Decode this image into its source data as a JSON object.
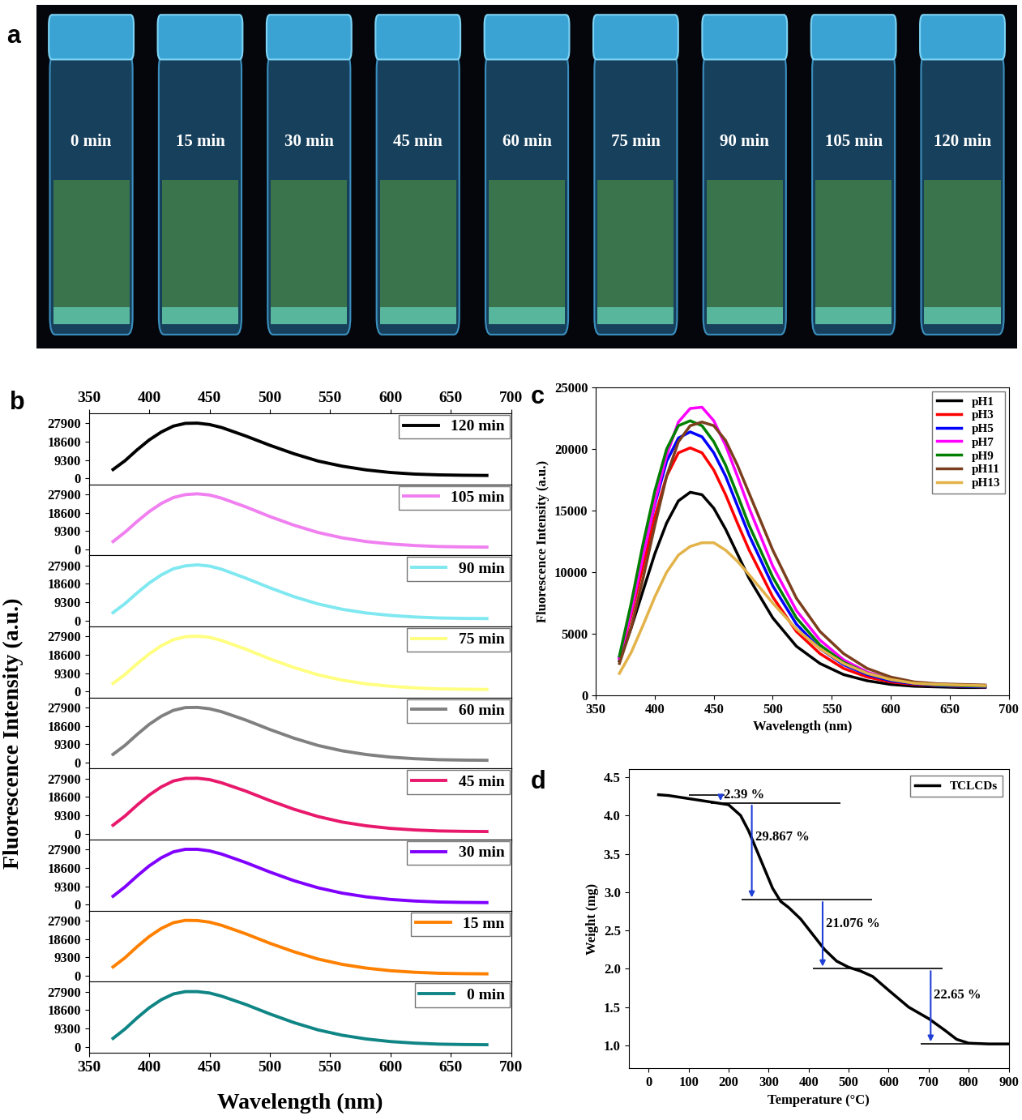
{
  "chart_data": [
    {
      "type": "photo",
      "title": "a",
      "categories": [
        "0 min",
        "15 min",
        "30 min",
        "45 min",
        "60 min",
        "75 min",
        "90 min",
        "105 min",
        "120 min"
      ]
    },
    {
      "type": "line",
      "title": "b",
      "x_label": "Wavelength (nm)",
      "y_label": "Fluorescence Intensity (a.u.)",
      "x": [
        370,
        380,
        390,
        400,
        410,
        420,
        430,
        440,
        450,
        460,
        480,
        500,
        520,
        540,
        560,
        580,
        600,
        620,
        640,
        660,
        680
      ],
      "xlim": [
        350,
        700
      ],
      "xticks": [
        350,
        400,
        450,
        500,
        550,
        600,
        650,
        700
      ],
      "ylim": [
        -3000,
        33000
      ],
      "yticks": [
        0,
        9300,
        18600,
        27900
      ],
      "legend": "upper right",
      "series": [
        {
          "name": "120 min",
          "color": "#000000",
          "values": [
            4500,
            9000,
            14500,
            19500,
            23500,
            26500,
            27900,
            28000,
            27300,
            25800,
            21500,
            16800,
            12500,
            8800,
            6200,
            4300,
            3000,
            2200,
            1800,
            1600,
            1500
          ]
        },
        {
          "name": "105 min",
          "color": "#f07ff0",
          "values": [
            4000,
            8800,
            14200,
            19200,
            23300,
            26300,
            27800,
            28200,
            27600,
            26000,
            21600,
            16700,
            12300,
            8600,
            5900,
            4000,
            2800,
            2000,
            1500,
            1300,
            1200
          ]
        },
        {
          "name": "90 min",
          "color": "#7fe8f0",
          "values": [
            4000,
            8600,
            14000,
            19000,
            23100,
            26200,
            27700,
            28200,
            27600,
            26000,
            21500,
            16600,
            12100,
            8400,
            5700,
            3800,
            2600,
            1800,
            1300,
            1100,
            1000
          ]
        },
        {
          "name": "75 min",
          "color": "#ffff80",
          "values": [
            4100,
            8700,
            14100,
            19100,
            23200,
            26300,
            27800,
            28100,
            27500,
            25900,
            21500,
            16600,
            12200,
            8500,
            5800,
            3900,
            2700,
            1900,
            1400,
            1200,
            1100
          ]
        },
        {
          "name": "60 min",
          "color": "#808080",
          "values": [
            4200,
            8800,
            14300,
            19400,
            23500,
            26500,
            27900,
            28000,
            27300,
            25800,
            21600,
            16800,
            12400,
            8700,
            6000,
            4100,
            2800,
            2000,
            1500,
            1300,
            1200
          ]
        },
        {
          "name": "45 min",
          "color": "#e8196c",
          "values": [
            4300,
            9000,
            14500,
            19600,
            23700,
            26700,
            28000,
            28100,
            27400,
            25800,
            21600,
            16800,
            12400,
            8700,
            5900,
            4000,
            2700,
            1900,
            1400,
            1200,
            1100
          ]
        },
        {
          "name": "30 min",
          "color": "#8000ff",
          "values": [
            4300,
            9100,
            14600,
            19700,
            23800,
            26800,
            28100,
            28100,
            27300,
            25700,
            21400,
            16600,
            12200,
            8600,
            5900,
            4000,
            2700,
            1900,
            1400,
            1200,
            1100
          ]
        },
        {
          "name": "15 mn",
          "color": "#ff8000",
          "values": [
            4500,
            9200,
            14800,
            19900,
            24000,
            26900,
            28100,
            28000,
            27200,
            25600,
            21300,
            16500,
            12200,
            8500,
            5800,
            3900,
            2600,
            1800,
            1300,
            1100,
            1000
          ]
        },
        {
          "name": "0 min",
          "color": "#0f8585",
          "values": [
            4300,
            9100,
            14700,
            19800,
            23900,
            26800,
            28000,
            28000,
            27300,
            25700,
            21500,
            16700,
            12300,
            8600,
            5900,
            4000,
            2700,
            1900,
            1400,
            1200,
            1100
          ]
        }
      ]
    },
    {
      "type": "line",
      "title": "c",
      "x_label": "Wavelength (nm)",
      "y_label": "Fluorescence Intensity (a.u.)",
      "x": [
        370,
        380,
        390,
        400,
        410,
        420,
        430,
        440,
        450,
        460,
        470,
        480,
        500,
        520,
        540,
        560,
        580,
        600,
        620,
        640,
        660,
        680
      ],
      "xlim": [
        350,
        700
      ],
      "xticks": [
        350,
        400,
        450,
        500,
        550,
        600,
        650,
        700
      ],
      "ylim": [
        0,
        25000
      ],
      "yticks": [
        0,
        5000,
        10000,
        15000,
        20000,
        25000
      ],
      "legend": "upper right",
      "series": [
        {
          "name": "pH1",
          "color": "#000000",
          "values": [
            2800,
            5500,
            8500,
            11500,
            14000,
            15800,
            16500,
            16300,
            15200,
            13500,
            11500,
            9500,
            6300,
            4000,
            2600,
            1700,
            1200,
            900,
            750,
            700,
            650,
            650
          ]
        },
        {
          "name": "pH3",
          "color": "#ff0000",
          "values": [
            3000,
            6500,
            10500,
            14500,
            17800,
            19700,
            20100,
            19700,
            18300,
            16300,
            14000,
            11800,
            8000,
            5200,
            3400,
            2200,
            1500,
            1100,
            900,
            800,
            750,
            700
          ]
        },
        {
          "name": "pH5",
          "color": "#0000ff",
          "values": [
            3100,
            7000,
            11500,
            15500,
            19000,
            20900,
            21400,
            21000,
            19700,
            17800,
            15400,
            13000,
            8900,
            5800,
            3800,
            2500,
            1700,
            1200,
            950,
            800,
            750,
            700
          ]
        },
        {
          "name": "pH7",
          "color": "#ff00ff",
          "values": [
            3000,
            6800,
            11300,
            15700,
            19500,
            22200,
            23300,
            23400,
            22300,
            20300,
            17800,
            15200,
            10500,
            6900,
            4500,
            2900,
            1900,
            1300,
            1000,
            850,
            800,
            750
          ]
        },
        {
          "name": "pH9",
          "color": "#008000",
          "values": [
            3200,
            7500,
            12300,
            16600,
            20000,
            21900,
            22300,
            21900,
            20600,
            18700,
            16300,
            13800,
            9600,
            6300,
            4100,
            2700,
            1800,
            1300,
            1000,
            850,
            800,
            750
          ]
        },
        {
          "name": "pH11",
          "color": "#7b3f1e",
          "values": [
            2600,
            5500,
            9500,
            13800,
            17800,
            20600,
            21900,
            22200,
            21900,
            20700,
            18700,
            16400,
            11800,
            7900,
            5200,
            3400,
            2200,
            1500,
            1100,
            950,
            900,
            850
          ]
        },
        {
          "name": "pH13",
          "color": "#e3b34a",
          "values": [
            1800,
            3500,
            5700,
            8000,
            10000,
            11400,
            12100,
            12400,
            12400,
            11800,
            10900,
            9800,
            7500,
            5400,
            3800,
            2600,
            1800,
            1300,
            1000,
            900,
            850,
            800
          ]
        }
      ]
    },
    {
      "type": "line",
      "title": "d",
      "x_label": "Temperature (°C)",
      "y_label": "Weight (mg)",
      "x": [
        25,
        50,
        100,
        150,
        200,
        230,
        250,
        270,
        290,
        310,
        330,
        350,
        380,
        410,
        440,
        470,
        500,
        530,
        560,
        600,
        650,
        700,
        740,
        770,
        800,
        850,
        900
      ],
      "xlim": [
        -50,
        900
      ],
      "xticks": [
        0,
        100,
        200,
        300,
        400,
        500,
        600,
        700,
        800,
        900
      ],
      "ylim": [
        0.7,
        4.6
      ],
      "yticks": [
        1.0,
        1.5,
        2.0,
        2.5,
        3.0,
        3.5,
        4.0,
        4.5
      ],
      "legend": "upper right",
      "series": [
        {
          "name": "TCLCDs",
          "color": "#000000",
          "values": [
            4.27,
            4.26,
            4.22,
            4.18,
            4.14,
            4.0,
            3.8,
            3.55,
            3.3,
            3.05,
            2.88,
            2.8,
            2.65,
            2.45,
            2.25,
            2.1,
            2.02,
            1.97,
            1.9,
            1.72,
            1.5,
            1.35,
            1.2,
            1.08,
            1.03,
            1.02,
            1.02
          ]
        }
      ],
      "steps": [
        {
          "label": "2.39 %",
          "x": 180,
          "from": 4.27,
          "to": 4.16
        },
        {
          "label": "29.867 %",
          "x": 258,
          "from": 4.16,
          "to": 2.9
        },
        {
          "label": "21.076 %",
          "x": 435,
          "from": 2.9,
          "to": 2.0
        },
        {
          "label": "22.65 %",
          "x": 705,
          "from": 2.0,
          "to": 1.02
        }
      ]
    }
  ]
}
